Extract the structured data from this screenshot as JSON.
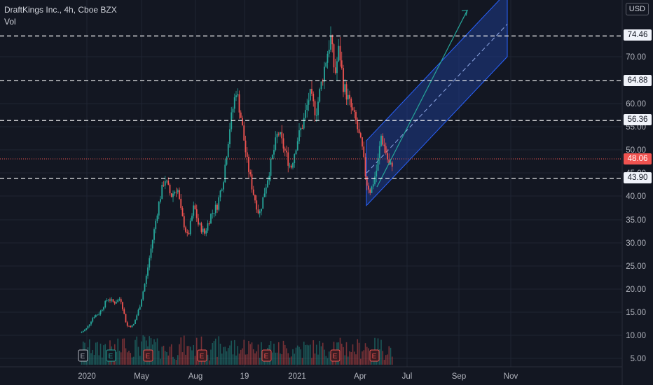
{
  "header": {
    "symbol_line": "DraftKings Inc., 4h, Cboe BZX",
    "volume_label": "Vol",
    "currency": "USD"
  },
  "colors": {
    "background": "#131722",
    "up": "#26a69a",
    "down": "#ef5350",
    "channel_fill": "#1e3a8a",
    "channel_line": "#2962ff",
    "arrow": "#26a69a",
    "hline": "#ffffff",
    "last_price": "#f05350"
  },
  "chart_data": {
    "type": "candlestick",
    "title": "DraftKings Inc., 4h, Cboe BZX",
    "x_tick_labels": [
      "2020",
      "May",
      "Aug",
      "19",
      "2021",
      "Apr",
      "Jul",
      "Sep",
      "Nov"
    ],
    "y_tick_labels": [
      "5.00",
      "10.00",
      "15.00",
      "20.00",
      "25.00",
      "30.00",
      "35.00",
      "40.00",
      "45.00",
      "50.00",
      "55.00",
      "60.00",
      "70.00"
    ],
    "ylim": [
      3.5,
      84
    ],
    "price_levels": [
      {
        "label": "74.46",
        "value": 74.46,
        "style": "white"
      },
      {
        "label": "64.88",
        "value": 64.88,
        "style": "white"
      },
      {
        "label": "56.36",
        "value": 56.36,
        "style": "white"
      },
      {
        "label": "48.06",
        "value": 48.06,
        "style": "red"
      },
      {
        "label": "43.90",
        "value": 43.9,
        "style": "white"
      }
    ],
    "price_path": [
      {
        "t": 0,
        "p": 10.5
      },
      {
        "t": 3,
        "p": 11.5
      },
      {
        "t": 6,
        "p": 14
      },
      {
        "t": 9,
        "p": 14.8
      },
      {
        "t": 13,
        "p": 18
      },
      {
        "t": 16,
        "p": 17
      },
      {
        "t": 19,
        "p": 18
      },
      {
        "t": 21,
        "p": 14
      },
      {
        "t": 22,
        "p": 12
      },
      {
        "t": 25,
        "p": 12
      },
      {
        "t": 28,
        "p": 16
      },
      {
        "t": 31,
        "p": 22
      },
      {
        "t": 34,
        "p": 30
      },
      {
        "t": 37,
        "p": 38
      },
      {
        "t": 40,
        "p": 44
      },
      {
        "t": 43,
        "p": 40
      },
      {
        "t": 46,
        "p": 42
      },
      {
        "t": 48,
        "p": 36
      },
      {
        "t": 51,
        "p": 31
      },
      {
        "t": 54,
        "p": 38
      },
      {
        "t": 56,
        "p": 34
      },
      {
        "t": 59,
        "p": 32
      },
      {
        "t": 62,
        "p": 36
      },
      {
        "t": 65,
        "p": 38
      },
      {
        "t": 68,
        "p": 44
      },
      {
        "t": 71,
        "p": 55
      },
      {
        "t": 74,
        "p": 63
      },
      {
        "t": 76,
        "p": 58
      },
      {
        "t": 79,
        "p": 48
      },
      {
        "t": 82,
        "p": 41
      },
      {
        "t": 85,
        "p": 36
      },
      {
        "t": 88,
        "p": 42
      },
      {
        "t": 91,
        "p": 48
      },
      {
        "t": 94,
        "p": 54
      },
      {
        "t": 97,
        "p": 50
      },
      {
        "t": 100,
        "p": 46
      },
      {
        "t": 103,
        "p": 52
      },
      {
        "t": 106,
        "p": 56
      },
      {
        "t": 109,
        "p": 62
      },
      {
        "t": 112,
        "p": 58
      },
      {
        "t": 114,
        "p": 63
      },
      {
        "t": 117,
        "p": 70
      },
      {
        "t": 119,
        "p": 74
      },
      {
        "t": 121,
        "p": 66
      },
      {
        "t": 123,
        "p": 72
      },
      {
        "t": 125,
        "p": 64
      },
      {
        "t": 128,
        "p": 60
      },
      {
        "t": 131,
        "p": 56
      },
      {
        "t": 134,
        "p": 50
      },
      {
        "t": 136,
        "p": 43
      },
      {
        "t": 138,
        "p": 41
      },
      {
        "t": 141,
        "p": 46
      },
      {
        "t": 143,
        "p": 53
      },
      {
        "t": 145,
        "p": 50
      },
      {
        "t": 147,
        "p": 46
      },
      {
        "t": 149,
        "p": 48
      }
    ],
    "earnings_markers": [
      {
        "label": "E",
        "style": "gray"
      },
      {
        "label": "E",
        "style": "teal"
      },
      {
        "label": "E",
        "style": "red"
      },
      {
        "label": "E",
        "style": "red"
      },
      {
        "label": "E",
        "style": "red"
      },
      {
        "label": "E",
        "style": "red"
      },
      {
        "label": "E",
        "style": "red"
      }
    ],
    "channel": {
      "start_low": 38,
      "start_high": 52,
      "end_low": 70,
      "end_high": 84
    },
    "log_scale": true,
    "grid": true
  }
}
